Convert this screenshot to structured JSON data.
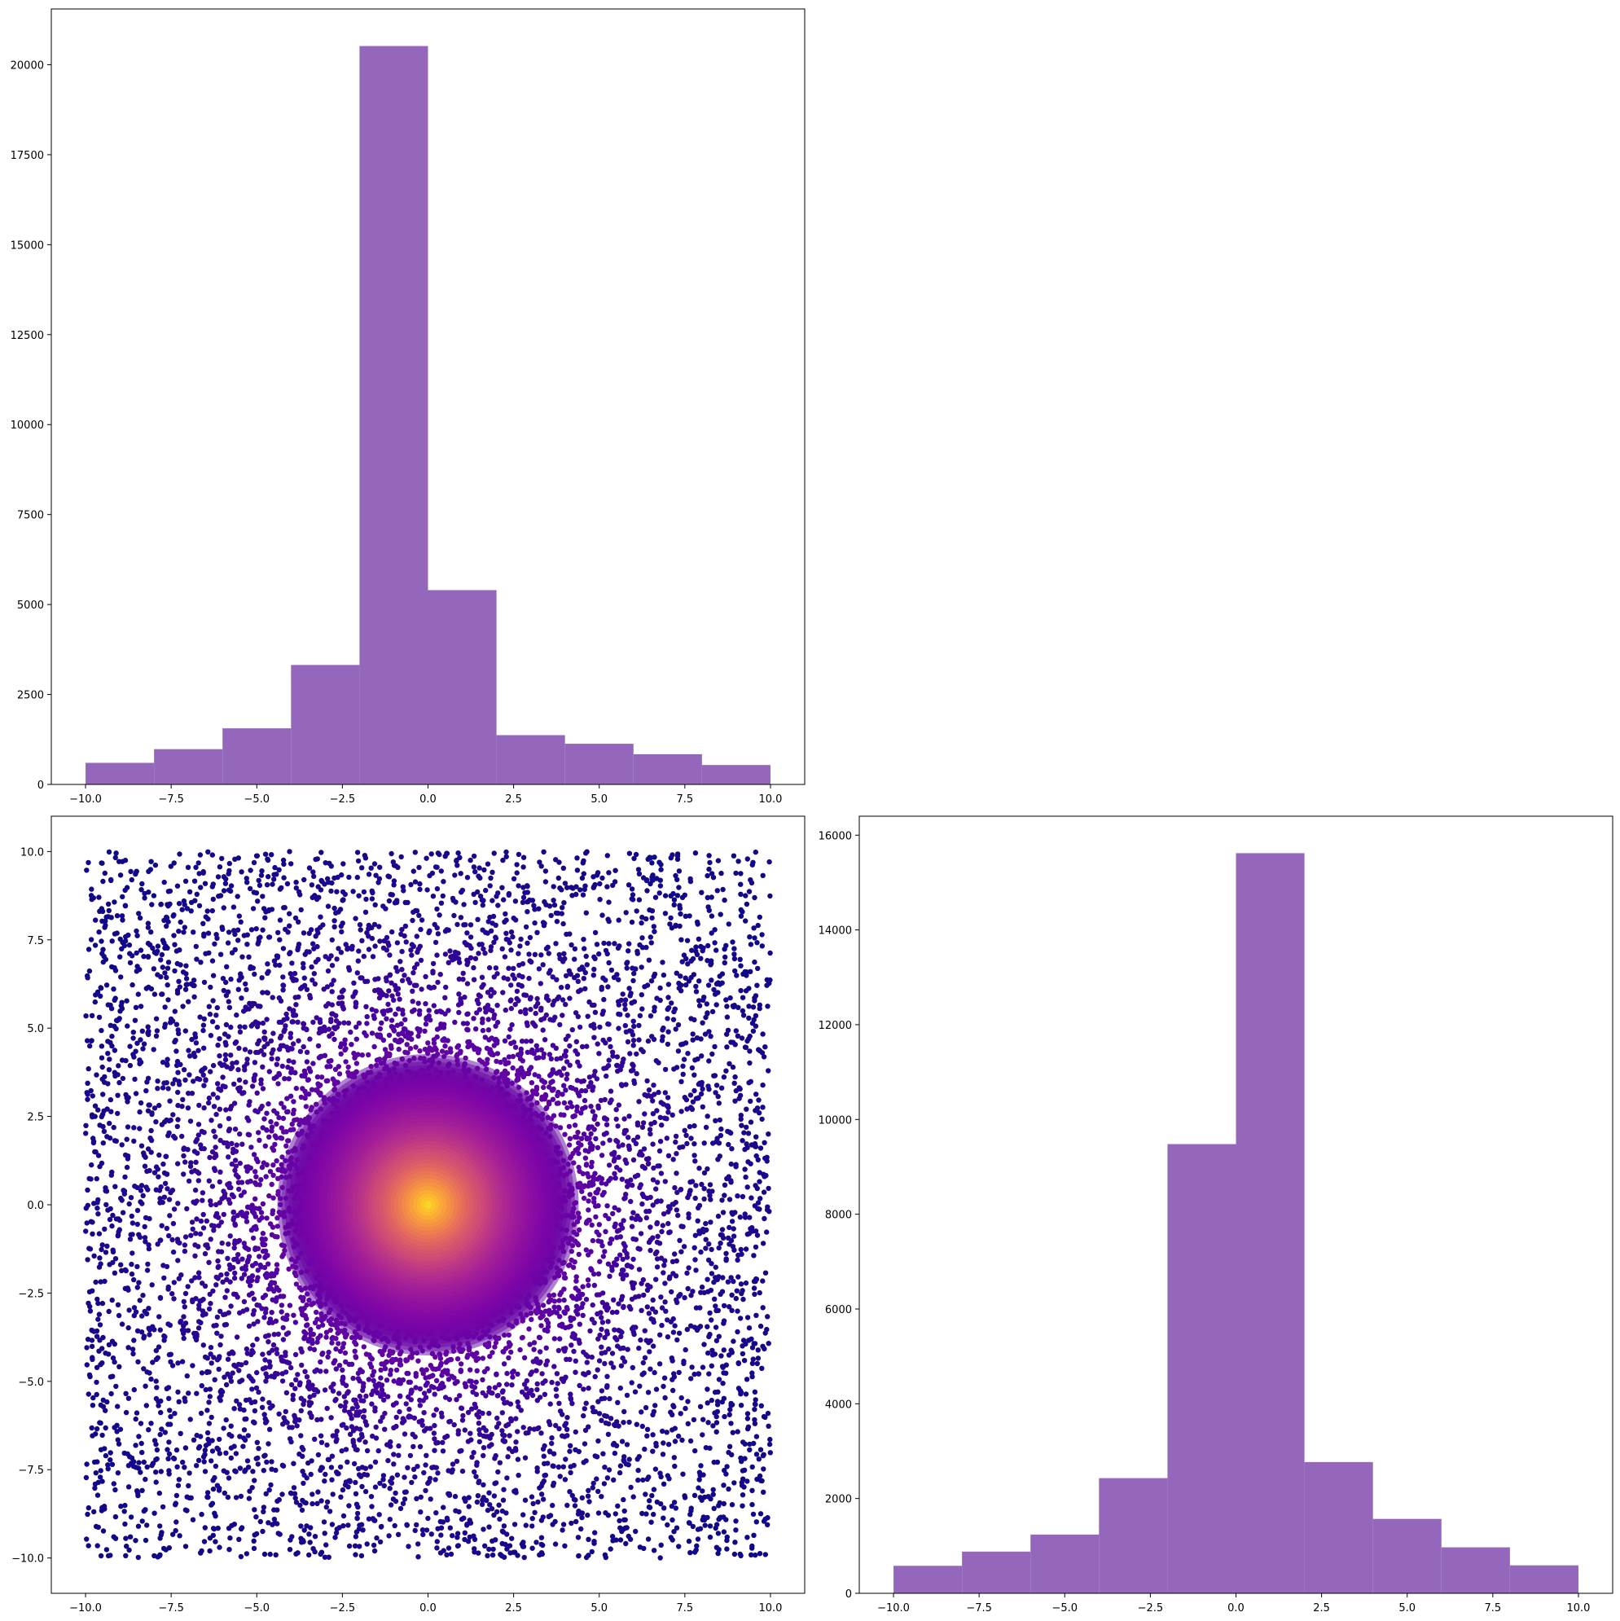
{
  "colors": {
    "bar": "#9467bd",
    "axes": "#000000",
    "background": "#ffffff",
    "colormap": "plasma"
  },
  "chart_data": [
    {
      "id": "hist-top",
      "type": "bar",
      "title": "",
      "xlabel": "",
      "ylabel": "",
      "bin_edges": [
        -10,
        -8,
        -6,
        -4,
        -2,
        0,
        2,
        4,
        6,
        8,
        10
      ],
      "values": [
        600,
        980,
        1560,
        3320,
        20520,
        5400,
        1370,
        1130,
        840,
        540
      ],
      "xlim": [
        -11,
        11
      ],
      "ylim": [
        0,
        21550
      ],
      "xticks": [
        -10,
        -7.5,
        -5,
        -2.5,
        0,
        2.5,
        5,
        7.5,
        10
      ],
      "xtick_labels": [
        "−10.0",
        "−7.5",
        "−5.0",
        "−2.5",
        "0.0",
        "2.5",
        "5.0",
        "7.5",
        "10.0"
      ],
      "yticks": [
        0,
        2500,
        5000,
        7500,
        10000,
        12500,
        15000,
        17500,
        20000
      ],
      "ytick_labels": [
        "0",
        "2500",
        "5000",
        "7500",
        "10000",
        "12500",
        "15000",
        "17500",
        "20000"
      ]
    },
    {
      "id": "scatter",
      "type": "scatter",
      "title": "",
      "xlabel": "",
      "ylabel": "",
      "description_of_points": "about 30000 points; uniform background over [-10,10]x[-10,10] plus a dense cluster centred near (0,0); colour = local density, plasma colormap (dark purple sparse, yellow dense)",
      "center": [
        0,
        0
      ],
      "xlim": [
        -11,
        11
      ],
      "ylim": [
        -11,
        11
      ],
      "xticks": [
        -10,
        -7.5,
        -5,
        -2.5,
        0,
        2.5,
        5,
        7.5,
        10
      ],
      "xtick_labels": [
        "−10.0",
        "−7.5",
        "−5.0",
        "−2.5",
        "0.0",
        "2.5",
        "5.0",
        "7.5",
        "10.0"
      ],
      "yticks": [
        -10,
        -7.5,
        -5,
        -2.5,
        0,
        2.5,
        5,
        7.5,
        10
      ],
      "ytick_labels": [
        "−10.0",
        "−7.5",
        "−5.0",
        "−2.5",
        "0.0",
        "2.5",
        "5.0",
        "7.5",
        "10.0"
      ]
    },
    {
      "id": "hist-right",
      "type": "bar",
      "title": "",
      "xlabel": "",
      "ylabel": "",
      "bin_edges": [
        -10,
        -8,
        -6,
        -4,
        -2,
        0,
        2,
        4,
        6,
        8,
        10
      ],
      "values": [
        580,
        880,
        1240,
        2430,
        9480,
        15620,
        2770,
        1570,
        970,
        590
      ],
      "xlim": [
        -11,
        11
      ],
      "ylim": [
        0,
        16400
      ],
      "xticks": [
        -10,
        -7.5,
        -5,
        -2.5,
        0,
        2.5,
        5,
        7.5,
        10
      ],
      "xtick_labels": [
        "−10.0",
        "−7.5",
        "−5.0",
        "−2.5",
        "0.0",
        "2.5",
        "5.0",
        "7.5",
        "10.0"
      ],
      "yticks": [
        0,
        2000,
        4000,
        6000,
        8000,
        10000,
        12000,
        14000,
        16000
      ],
      "ytick_labels": [
        "0",
        "2000",
        "4000",
        "6000",
        "8000",
        "10000",
        "12000",
        "14000",
        "16000"
      ]
    }
  ]
}
